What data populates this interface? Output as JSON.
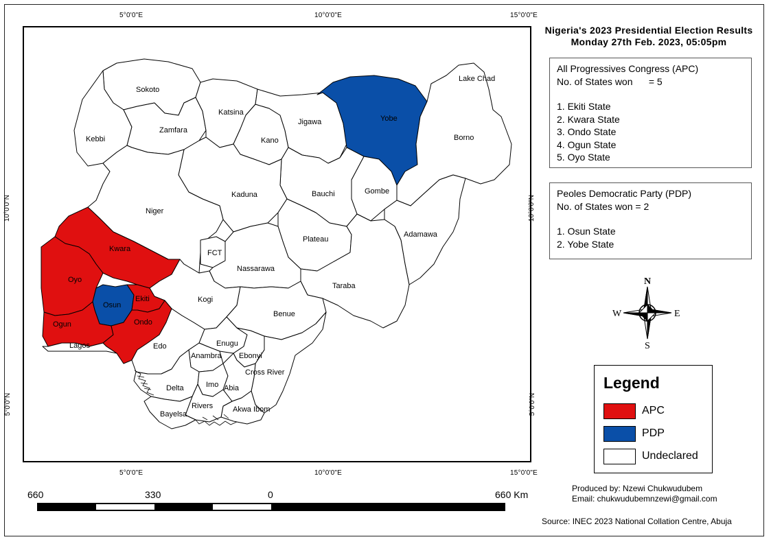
{
  "title": {
    "line1": "Nigeria's 2023 Presidential Election Results",
    "line2": "Monday 27th Feb. 2023, 05:05pm"
  },
  "graticule": {
    "top": [
      "5°0'0\"E",
      "10°0'0\"E",
      "15°0'0\"E"
    ],
    "bottom": [
      "5°0'0\"E",
      "10°0'0\"E",
      "15°0'0\"E"
    ],
    "left": [
      "10°0'0\"N",
      "5°0'0\"N"
    ],
    "right": [
      "10°0'0\"N",
      "5°0'0\"N"
    ]
  },
  "apc_box": {
    "party": "All Progressives Congress (APC)",
    "count": "No. of States won      = 5",
    "states": [
      "1. Ekiti State",
      "2. Kwara State",
      "3. Ondo State",
      "4. Ogun State",
      "5. Oyo State"
    ]
  },
  "pdp_box": {
    "party": "Peoles Democratic Party (PDP)",
    "count": "No. of States won = 2",
    "states": [
      "1. Osun State",
      "2. Yobe State"
    ]
  },
  "compass": {
    "n": "N",
    "s": "S",
    "e": "E",
    "w": "W"
  },
  "legend": {
    "title": "Legend",
    "items": [
      {
        "label": "APC",
        "color": "#e01010"
      },
      {
        "label": "PDP",
        "color": "#0a4fa8"
      },
      {
        "label": "Undeclared",
        "color": "#ffffff"
      }
    ]
  },
  "scale": {
    "labels": [
      "660",
      "330",
      "0",
      "660"
    ],
    "unit": "Km"
  },
  "credits": {
    "produced_by": "Produced by: Nzewi Chukwudubem",
    "email": "Email: chukwudubemnzewi@gmail.com"
  },
  "source": "Source: INEC 2023 National Collation Centre, Abuja",
  "states": {
    "sokoto": "Sokoto",
    "katsina": "Katsina",
    "jigawa": "Jigawa",
    "yobe": "Yobe",
    "lake_chad": "Lake Chad",
    "zamfara": "Zamfara",
    "kano": "Kano",
    "borno": "Borno",
    "kebbi": "Kebbi",
    "kaduna": "Kaduna",
    "bauchi": "Bauchi",
    "gombe": "Gombe",
    "niger": "Niger",
    "adamawa": "Adamawa",
    "fct": "FCT",
    "plateau": "Plateau",
    "kwara": "Kwara",
    "oyo": "Oyo",
    "nassarawa": "Nassarawa",
    "taraba": "Taraba",
    "osun": "Osun",
    "ekiti": "Ekiti",
    "kogi": "Kogi",
    "benue": "Benue",
    "ogun": "Ogun",
    "ondo": "Ondo",
    "lagos": "Lagos",
    "edo": "Edo",
    "enugu": "Enugu",
    "anambra": "Anambra",
    "ebonyi": "Ebonyi",
    "cross_river": "Cross River",
    "delta": "Delta",
    "imo": "Imo",
    "abia": "Abia",
    "rivers": "Rivers",
    "akwa_ibom": "Akwa Ibom",
    "bayelsa": "Bayelsa"
  }
}
